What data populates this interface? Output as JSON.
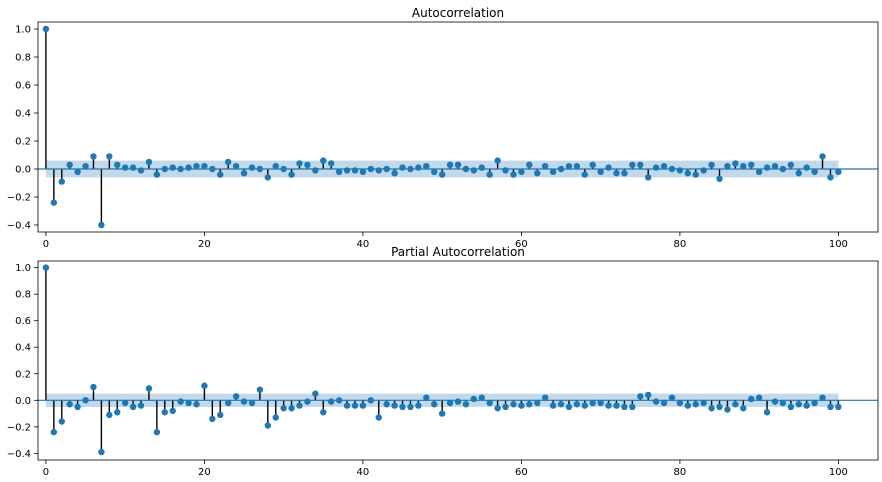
{
  "chart_data": [
    {
      "type": "stem",
      "title": "Autocorrelation",
      "xlim": [
        -1,
        105
      ],
      "ylim": [
        -0.45,
        1.05
      ],
      "xticks": [
        0,
        20,
        40,
        60,
        80,
        100
      ],
      "yticks": [
        -0.4,
        -0.2,
        0.0,
        0.2,
        0.4,
        0.6,
        0.8,
        1.0
      ],
      "xtick_labels": [
        "0",
        "20",
        "40",
        "60",
        "80",
        "100"
      ],
      "ytick_labels": [
        "−0.4",
        "−0.2",
        "0.0",
        "0.2",
        "0.4",
        "0.6",
        "0.8",
        "1.0"
      ],
      "confidence_band": 0.06,
      "lags": [
        0,
        1,
        2,
        3,
        4,
        5,
        6,
        7,
        8,
        9,
        10,
        11,
        12,
        13,
        14,
        15,
        16,
        17,
        18,
        19,
        20,
        21,
        22,
        23,
        24,
        25,
        26,
        27,
        28,
        29,
        30,
        31,
        32,
        33,
        34,
        35,
        36,
        37,
        38,
        39,
        40,
        41,
        42,
        43,
        44,
        45,
        46,
        47,
        48,
        49,
        50,
        51,
        52,
        53,
        54,
        55,
        56,
        57,
        58,
        59,
        60,
        61,
        62,
        63,
        64,
        65,
        66,
        67,
        68,
        69,
        70,
        71,
        72,
        73,
        74,
        75,
        76,
        77,
        78,
        79,
        80,
        81,
        82,
        83,
        84,
        85,
        86,
        87,
        88,
        89,
        90,
        91,
        92,
        93,
        94,
        95,
        96,
        97,
        98,
        99,
        100
      ],
      "values": [
        1.0,
        -0.24,
        -0.09,
        0.03,
        -0.02,
        0.02,
        0.09,
        -0.4,
        0.09,
        0.03,
        0.01,
        0.01,
        -0.01,
        0.05,
        -0.04,
        0.0,
        0.01,
        0.0,
        0.01,
        0.02,
        0.02,
        0.0,
        -0.04,
        0.05,
        0.02,
        -0.03,
        0.01,
        0.0,
        -0.06,
        0.02,
        0.0,
        -0.04,
        0.04,
        0.03,
        -0.01,
        0.06,
        0.04,
        -0.02,
        -0.01,
        -0.01,
        -0.02,
        0.0,
        -0.01,
        0.0,
        -0.03,
        0.01,
        0.0,
        0.01,
        0.02,
        -0.02,
        -0.04,
        0.03,
        0.03,
        0.0,
        -0.01,
        0.01,
        -0.04,
        0.06,
        -0.01,
        -0.04,
        -0.02,
        0.03,
        -0.03,
        0.02,
        -0.02,
        0.0,
        0.02,
        0.02,
        -0.04,
        0.03,
        -0.02,
        0.01,
        -0.03,
        -0.03,
        0.03,
        0.03,
        -0.06,
        0.01,
        0.02,
        0.0,
        -0.01,
        -0.03,
        -0.04,
        -0.01,
        0.03,
        -0.07,
        0.02,
        0.04,
        0.02,
        0.03,
        -0.02,
        0.01,
        0.02,
        0.0,
        0.03,
        -0.03,
        0.01,
        -0.02,
        0.09,
        -0.06,
        -0.02
      ]
    },
    {
      "type": "stem",
      "title": "Partial Autocorrelation",
      "xlim": [
        -1,
        105
      ],
      "ylim": [
        -0.45,
        1.05
      ],
      "xticks": [
        0,
        20,
        40,
        60,
        80,
        100
      ],
      "yticks": [
        -0.4,
        -0.2,
        0.0,
        0.2,
        0.4,
        0.6,
        0.8,
        1.0
      ],
      "xtick_labels": [
        "0",
        "20",
        "40",
        "60",
        "80",
        "100"
      ],
      "ytick_labels": [
        "−0.4",
        "−0.2",
        "0.0",
        "0.2",
        "0.4",
        "0.6",
        "0.8",
        "1.0"
      ],
      "confidence_band": 0.05,
      "lags": [
        0,
        1,
        2,
        3,
        4,
        5,
        6,
        7,
        8,
        9,
        10,
        11,
        12,
        13,
        14,
        15,
        16,
        17,
        18,
        19,
        20,
        21,
        22,
        23,
        24,
        25,
        26,
        27,
        28,
        29,
        30,
        31,
        32,
        33,
        34,
        35,
        36,
        37,
        38,
        39,
        40,
        41,
        42,
        43,
        44,
        45,
        46,
        47,
        48,
        49,
        50,
        51,
        52,
        53,
        54,
        55,
        56,
        57,
        58,
        59,
        60,
        61,
        62,
        63,
        64,
        65,
        66,
        67,
        68,
        69,
        70,
        71,
        72,
        73,
        74,
        75,
        76,
        77,
        78,
        79,
        80,
        81,
        82,
        83,
        84,
        85,
        86,
        87,
        88,
        89,
        90,
        91,
        92,
        93,
        94,
        95,
        96,
        97,
        98,
        99,
        100
      ],
      "values": [
        1.0,
        -0.24,
        -0.16,
        -0.03,
        -0.05,
        0.0,
        0.1,
        -0.39,
        -0.11,
        -0.09,
        -0.02,
        -0.05,
        -0.04,
        0.09,
        -0.24,
        -0.09,
        -0.08,
        -0.01,
        -0.02,
        -0.03,
        0.11,
        -0.14,
        -0.11,
        -0.02,
        0.03,
        -0.01,
        -0.02,
        0.08,
        -0.19,
        -0.13,
        -0.06,
        -0.06,
        -0.04,
        -0.01,
        0.05,
        -0.09,
        -0.01,
        0.0,
        -0.04,
        -0.04,
        -0.04,
        0.0,
        -0.13,
        -0.03,
        -0.04,
        -0.05,
        -0.05,
        -0.04,
        0.02,
        -0.03,
        -0.1,
        -0.02,
        -0.01,
        -0.03,
        0.01,
        0.02,
        -0.02,
        -0.06,
        -0.05,
        -0.03,
        -0.04,
        -0.03,
        -0.02,
        0.02,
        -0.04,
        -0.03,
        -0.05,
        -0.03,
        -0.04,
        -0.02,
        -0.02,
        -0.04,
        -0.04,
        -0.05,
        -0.05,
        0.03,
        0.04,
        -0.01,
        -0.02,
        0.02,
        -0.02,
        -0.04,
        -0.03,
        -0.02,
        -0.06,
        -0.05,
        -0.07,
        -0.03,
        -0.06,
        0.01,
        0.02,
        -0.09,
        -0.01,
        -0.02,
        -0.05,
        -0.03,
        -0.04,
        -0.02,
        0.02,
        -0.05,
        -0.05
      ]
    }
  ]
}
